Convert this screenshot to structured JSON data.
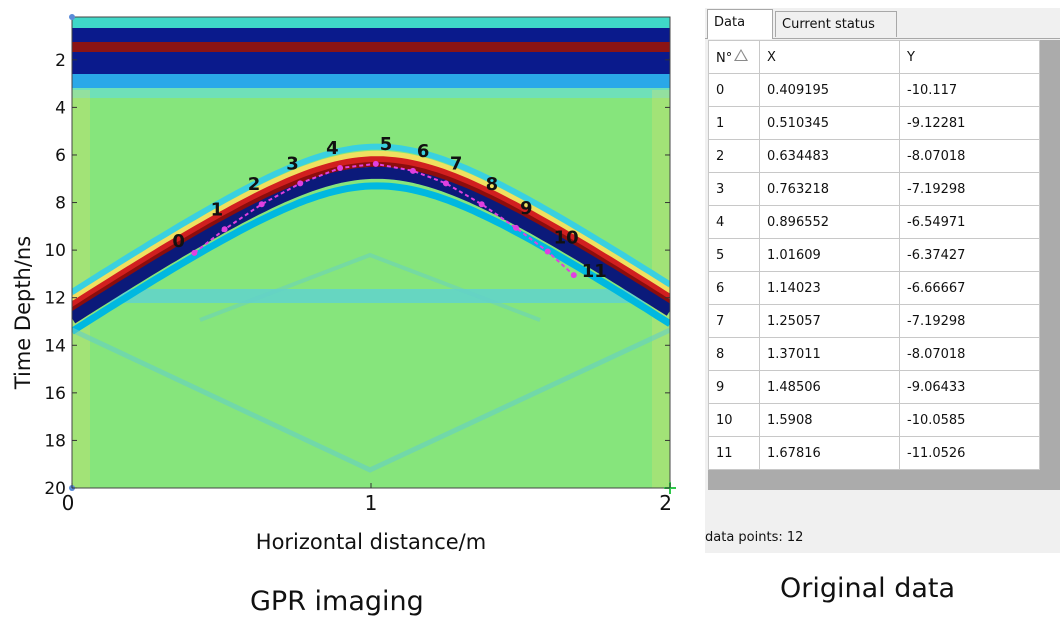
{
  "plot": {
    "ylabel": "Time Depth/ns",
    "xlabel": "Horizontal distance/m",
    "y_ticks": [
      "2",
      "4",
      "6",
      "8",
      "10",
      "12",
      "14",
      "16",
      "18",
      "20"
    ],
    "x_ticks": [
      "0",
      "1",
      "2"
    ],
    "x_range": [
      0,
      2
    ],
    "y_range": [
      0.2,
      20
    ],
    "background_color": "#7ee07a",
    "hyperbola_colors": [
      "#0b1a7a",
      "#d11f1f",
      "#8b0d0d",
      "#f0e060",
      "#00b8e0"
    ],
    "marker_color": "#e040e0",
    "points": [
      "0",
      "1",
      "2",
      "3",
      "4",
      "5",
      "6",
      "7",
      "8",
      "9",
      "10",
      "11"
    ],
    "caption": "GPR imaging"
  },
  "window": {
    "tabs": [
      {
        "label": "Data",
        "active": true
      },
      {
        "label": "Current status",
        "active": false
      }
    ],
    "columns": [
      "N°",
      "X",
      "Y"
    ],
    "rows": [
      {
        "n": "0",
        "x": "0.409195",
        "y": "-10.117"
      },
      {
        "n": "1",
        "x": "0.510345",
        "y": "-9.12281"
      },
      {
        "n": "2",
        "x": "0.634483",
        "y": "-8.07018"
      },
      {
        "n": "3",
        "x": "0.763218",
        "y": "-7.19298"
      },
      {
        "n": "4",
        "x": "0.896552",
        "y": "-6.54971"
      },
      {
        "n": "5",
        "x": "1.01609",
        "y": "-6.37427"
      },
      {
        "n": "6",
        "x": "1.14023",
        "y": "-6.66667"
      },
      {
        "n": "7",
        "x": "1.25057",
        "y": "-7.19298"
      },
      {
        "n": "8",
        "x": "1.37011",
        "y": "-8.07018"
      },
      {
        "n": "9",
        "x": "1.48506",
        "y": "-9.06433"
      },
      {
        "n": "10",
        "x": "1.5908",
        "y": "-10.0585"
      },
      {
        "n": "11",
        "x": "1.67816",
        "y": "-11.0526"
      }
    ],
    "status": "data points: 12",
    "caption": "Original data"
  }
}
